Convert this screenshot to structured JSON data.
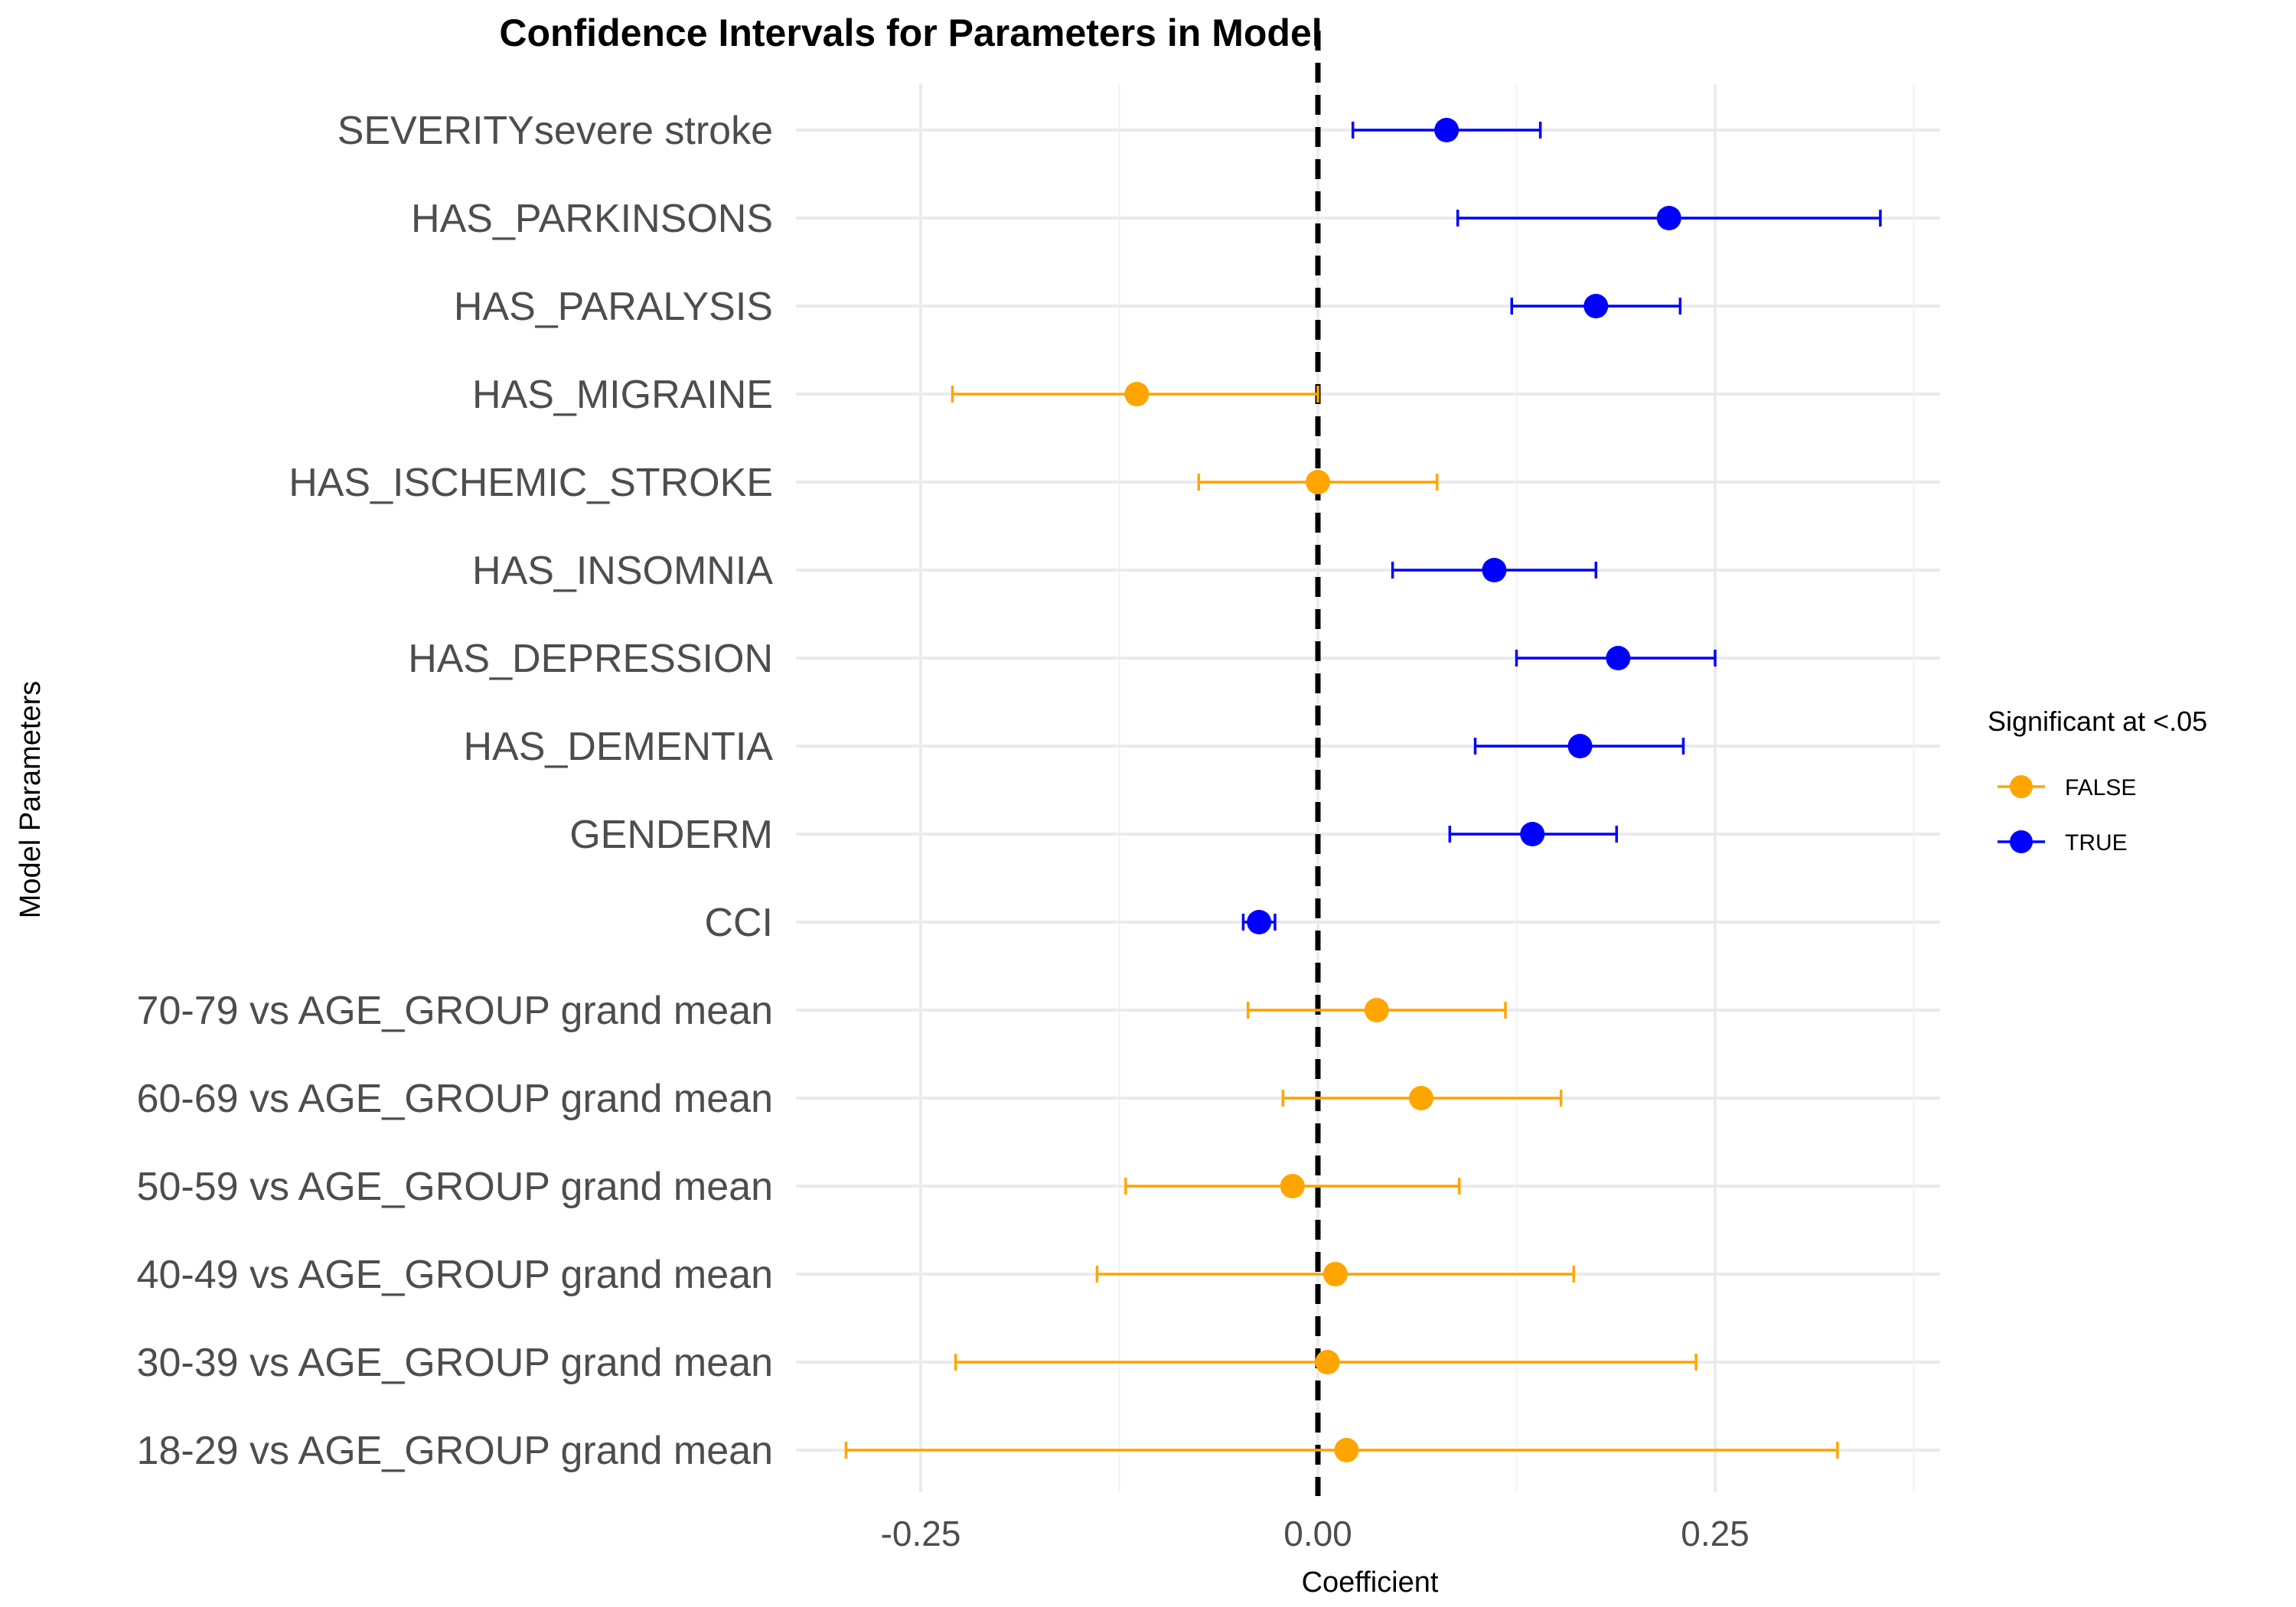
{
  "chart_data": {
    "type": "scatter",
    "title": "Confidence Intervals for Parameters in Model",
    "xlabel": "Coefficient",
    "ylabel": "Model Parameters",
    "xlim": [
      -0.327,
      0.386
    ],
    "x_ticks": [
      -0.25,
      0.0,
      0.25
    ],
    "x_tick_labels": [
      "-0.25",
      "0.00",
      "0.25"
    ],
    "reference_line_x": 0,
    "grid": true,
    "legend": {
      "title": "Significant at <.05",
      "placement": "right",
      "entries": [
        {
          "label": "FALSE",
          "color": "#FFA500"
        },
        {
          "label": "TRUE",
          "color": "#0000FF"
        }
      ]
    },
    "categories": [
      "SEVERITYsevere stroke",
      "HAS_PARKINSONS",
      "HAS_PARALYSIS",
      "HAS_MIGRAINE",
      "HAS_ISCHEMIC_STROKE",
      "HAS_INSOMNIA",
      "HAS_DEPRESSION",
      "HAS_DEMENTIA",
      "GENDERM",
      "CCI",
      "70-79 vs AGE_GROUP grand mean",
      "60-69 vs AGE_GROUP grand mean",
      "50-59 vs AGE_GROUP grand mean",
      "40-49 vs AGE_GROUP grand mean",
      "30-39 vs AGE_GROUP grand mean",
      "18-29 vs AGE_GROUP grand mean"
    ],
    "estimate": [
      0.081,
      0.221,
      0.175,
      -0.114,
      0.0,
      0.111,
      0.189,
      0.165,
      0.135,
      -0.037,
      0.037,
      0.065,
      -0.016,
      0.011,
      0.006,
      0.018
    ],
    "lower": [
      0.022,
      0.088,
      0.122,
      -0.23,
      -0.075,
      0.047,
      0.125,
      0.099,
      0.083,
      -0.047,
      -0.044,
      -0.022,
      -0.121,
      -0.139,
      -0.228,
      -0.297
    ],
    "upper": [
      0.14,
      0.354,
      0.228,
      0.0,
      0.075,
      0.175,
      0.25,
      0.23,
      0.188,
      -0.027,
      0.118,
      0.153,
      0.089,
      0.161,
      0.238,
      0.327
    ],
    "significant": [
      true,
      true,
      true,
      false,
      false,
      true,
      true,
      true,
      true,
      true,
      false,
      false,
      false,
      false,
      false,
      false
    ]
  }
}
